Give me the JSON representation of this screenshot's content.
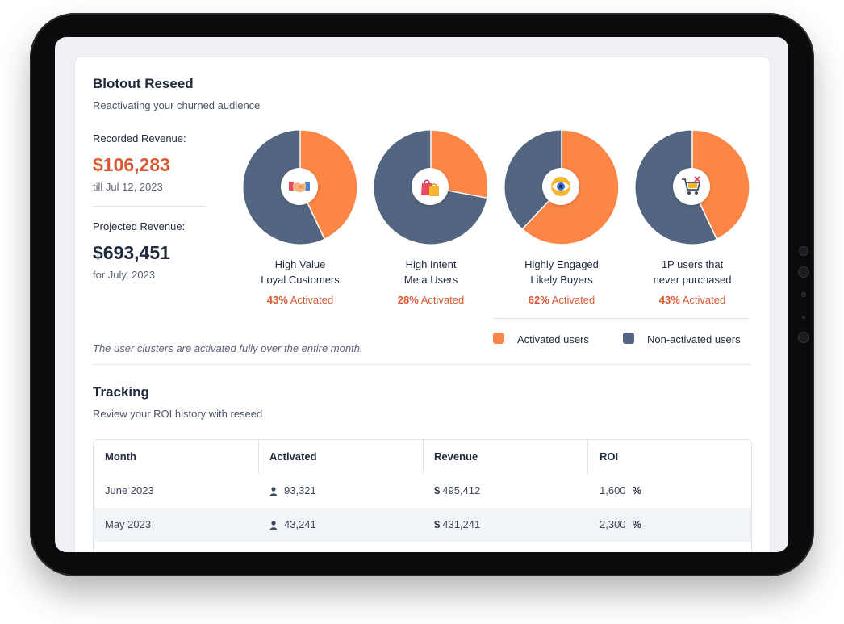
{
  "colors": {
    "activated": "#fb8646",
    "non_activated": "#536580",
    "accent_red": "#d75a35"
  },
  "reseed": {
    "title": "Blotout Reseed",
    "subtitle": "Reactivating your churned audience",
    "recorded_label": "Recorded Revenue:",
    "recorded_value": "$106,283",
    "recorded_date": "till Jul 12, 2023",
    "projected_label": "Projected Revenue:",
    "projected_value": "$693,451",
    "projected_date": "for July, 2023",
    "note": "The user clusters are activated fully over the entire month."
  },
  "chart_data": {
    "type": "pie",
    "charts": [
      {
        "label_line1": "High Value",
        "label_line2": "Loyal Customers",
        "activated_pct": 43,
        "pct_text": "43%",
        "icon": "handshake-icon"
      },
      {
        "label_line1": "High Intent",
        "label_line2": "Meta Users",
        "activated_pct": 28,
        "pct_text": "28%",
        "icon": "shopping-bags-icon"
      },
      {
        "label_line1": "Highly Engaged",
        "label_line2": "Likely Buyers",
        "activated_pct": 62,
        "pct_text": "62%",
        "icon": "eye-icon"
      },
      {
        "label_line1": "1P users that",
        "label_line2": "never purchased",
        "activated_pct": 43,
        "pct_text": "43%",
        "icon": "cart-cancel-icon"
      }
    ],
    "activated_suffix": "Activated",
    "legend": {
      "activated": "Activated users",
      "non_activated": "Non-activated users"
    }
  },
  "tracking": {
    "title": "Tracking",
    "subtitle": "Review your ROI history with reseed",
    "headers": [
      "Month",
      "Activated",
      "Revenue",
      "ROI"
    ],
    "currency_symbol": "$",
    "percent_symbol": "%",
    "rows": [
      {
        "month": "June 2023",
        "activated": "93,321",
        "revenue": "495,412",
        "roi": "1,600"
      },
      {
        "month": "May 2023",
        "activated": "43,241",
        "revenue": "431,241",
        "roi": "2,300"
      }
    ]
  }
}
